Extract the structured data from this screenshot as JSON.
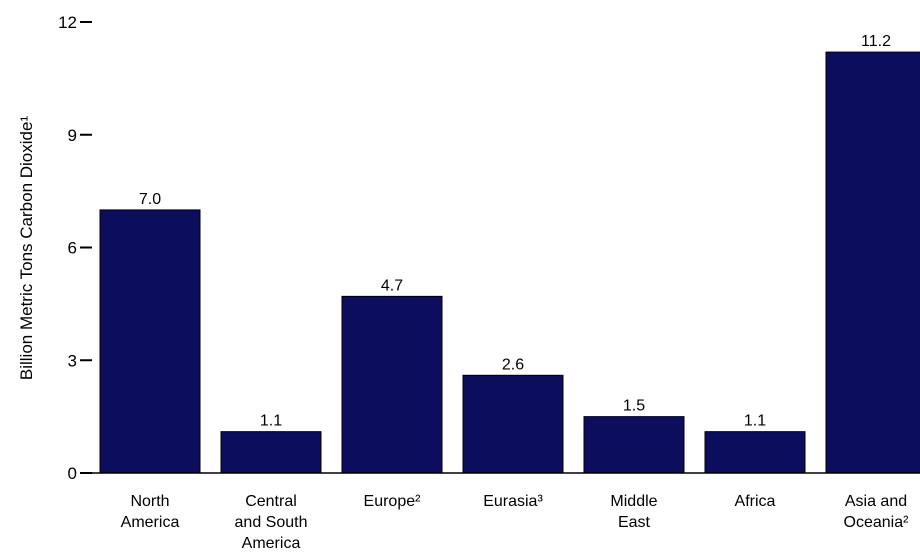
{
  "chart_data": {
    "type": "bar",
    "title": "",
    "ylabel": "Billion Metric Tons Carbon Dioxide¹",
    "xlabel": "",
    "ylim": [
      0,
      12
    ],
    "yticks": [
      0,
      3,
      6,
      9,
      12
    ],
    "categories": [
      [
        "North",
        "America"
      ],
      [
        "Central",
        "and South",
        "America"
      ],
      [
        "Europe²"
      ],
      [
        "Eurasia³"
      ],
      [
        "Middle",
        "East"
      ],
      [
        "Africa"
      ],
      [
        "Asia and",
        "Oceania²"
      ]
    ],
    "values": [
      7.0,
      1.1,
      4.7,
      2.6,
      1.5,
      1.1,
      11.2
    ],
    "value_labels": [
      "7.0",
      "1.1",
      "4.7",
      "2.6",
      "1.5",
      "1.1",
      "11.2"
    ],
    "bar_color": "#0d0d5e",
    "grid": false
  }
}
